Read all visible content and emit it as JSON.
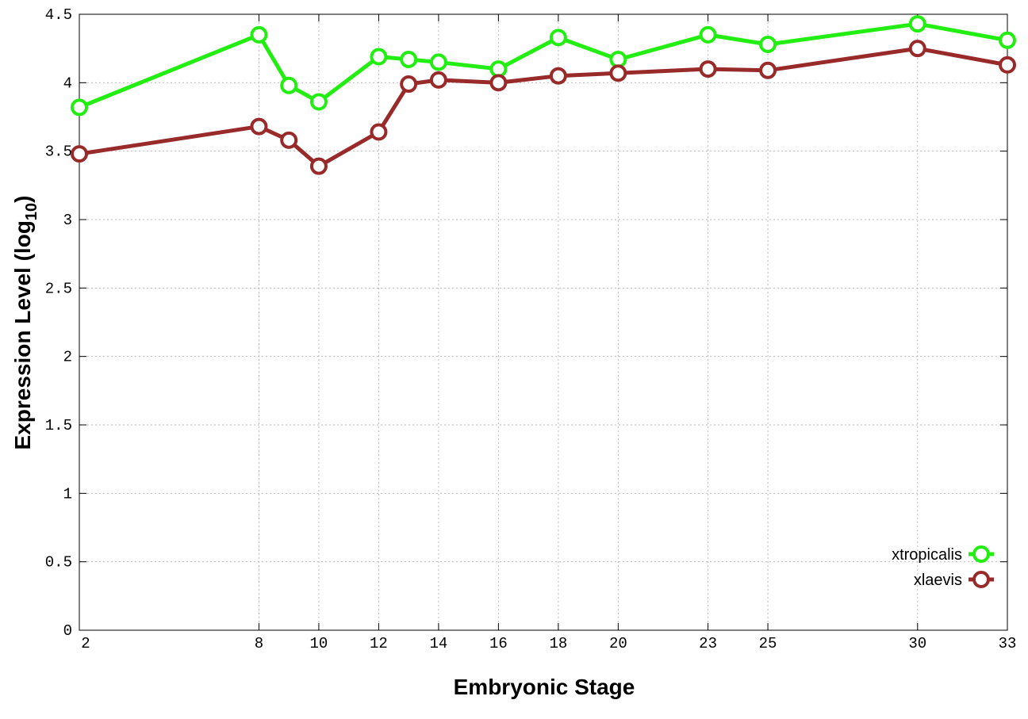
{
  "chart_data": {
    "type": "line",
    "x_label": "Embryonic Stage",
    "y_label": [
      "Expression Level (log",
      "10",
      ")"
    ],
    "x": [
      2,
      8,
      9,
      10,
      12,
      13,
      14,
      16,
      18,
      20,
      23,
      25,
      30,
      33
    ],
    "series": [
      {
        "name": "xtropicalis",
        "color": "#22ee11",
        "values": [
          3.82,
          4.35,
          3.98,
          3.86,
          4.19,
          4.17,
          4.15,
          4.1,
          4.33,
          4.17,
          4.35,
          4.28,
          4.43,
          4.31
        ]
      },
      {
        "name": "xlaevis",
        "color": "#992a2a",
        "values": [
          3.48,
          3.68,
          3.58,
          3.39,
          3.64,
          3.99,
          4.02,
          4.0,
          4.05,
          4.07,
          4.1,
          4.09,
          4.25,
          4.13
        ]
      }
    ],
    "xlim": [
      2,
      33
    ],
    "xticks": [
      2,
      8,
      10,
      12,
      14,
      16,
      18,
      20,
      23,
      25,
      30,
      33
    ],
    "ylim": [
      0,
      4.5
    ],
    "yticks": [
      0,
      0.5,
      1,
      1.5,
      2,
      2.5,
      3,
      3.5,
      4,
      4.5
    ],
    "grid": true,
    "legend": "lower right"
  }
}
